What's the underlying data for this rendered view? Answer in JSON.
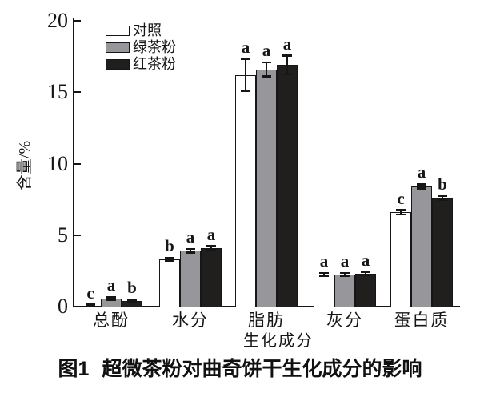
{
  "figure": {
    "caption_prefix": "图1",
    "caption_text": "超微茶粉对曲奇饼干生化成分的影响"
  },
  "chart_data": {
    "type": "bar",
    "title": "图1 超微茶粉对曲奇饼干生化成分的影响",
    "xlabel": "生化成分",
    "ylabel": "含量/%",
    "ylim": [
      0,
      20
    ],
    "yticks": [
      0,
      5,
      10,
      15,
      20
    ],
    "grid": false,
    "legend_position": "top-left-inside",
    "categories": [
      "总酚",
      "水分",
      "脂肪",
      "灰分",
      "蛋白质"
    ],
    "series": [
      {
        "name": "对照",
        "fill": "#ffffff",
        "values": [
          0.07,
          3.3,
          16.2,
          2.25,
          6.6
        ],
        "errors": [
          0.06,
          0.12,
          1.1,
          0.1,
          0.15
        ],
        "letters": [
          "c",
          "b",
          "a",
          "a",
          "c"
        ]
      },
      {
        "name": "绿茶粉",
        "fill": "#97979b",
        "values": [
          0.55,
          3.9,
          16.6,
          2.25,
          8.4
        ],
        "errors": [
          0.1,
          0.12,
          0.5,
          0.1,
          0.15
        ],
        "letters": [
          "a",
          "a",
          "a",
          "a",
          "a"
        ]
      },
      {
        "name": "红茶粉",
        "fill": "#211e1e",
        "values": [
          0.4,
          4.1,
          16.9,
          2.3,
          7.6
        ],
        "errors": [
          0.08,
          0.12,
          0.65,
          0.1,
          0.12
        ],
        "letters": [
          "b",
          "a",
          "a",
          "a",
          "b"
        ]
      }
    ],
    "ink_color": "#161616"
  }
}
